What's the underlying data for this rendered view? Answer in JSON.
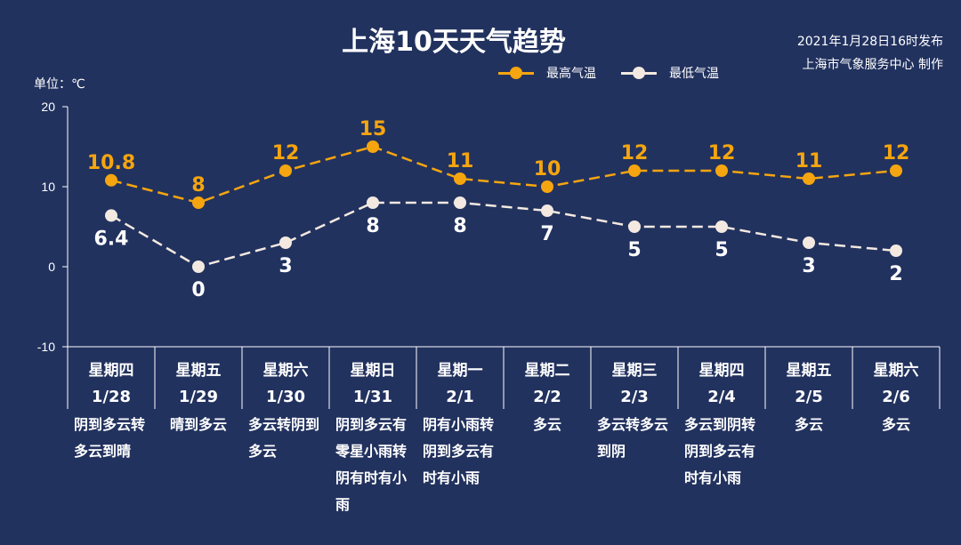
{
  "title": "上海10天天气趋势",
  "publish": {
    "time": "2021年1月28日16时发布",
    "producer": "上海市气象服务中心 制作"
  },
  "colors": {
    "background": "#22325f",
    "high": "#f5a50f",
    "low": "#f3e9e0",
    "axis": "#ffffff"
  },
  "chart_data": {
    "type": "line",
    "title": "上海10天天气趋势",
    "ylabel": "单位：℃",
    "ylim": [
      -10,
      20
    ],
    "yticks": [
      "-10",
      "0",
      "10",
      "20"
    ],
    "yticks_values": [
      -10,
      0,
      10,
      20
    ],
    "legend_position": "top-center",
    "categories": [
      {
        "weekday": "星期四",
        "date": "1/28",
        "weather": "阴到多云转多云到晴"
      },
      {
        "weekday": "星期五",
        "date": "1/29",
        "weather": "晴到多云"
      },
      {
        "weekday": "星期六",
        "date": "1/30",
        "weather": "多云转阴到多云"
      },
      {
        "weekday": "星期日",
        "date": "1/31",
        "weather": "阴到多云有零星小雨转阴有时有小雨"
      },
      {
        "weekday": "星期一",
        "date": "2/1",
        "weather": "阴有小雨转阴到多云有时有小雨"
      },
      {
        "weekday": "星期二",
        "date": "2/2",
        "weather": "多云"
      },
      {
        "weekday": "星期三",
        "date": "2/3",
        "weather": "多云转多云到阴"
      },
      {
        "weekday": "星期四",
        "date": "2/4",
        "weather": "多云到阴转阴到多云有时有小雨"
      },
      {
        "weekday": "星期五",
        "date": "2/5",
        "weather": "多云"
      },
      {
        "weekday": "星期六",
        "date": "2/6",
        "weather": "多云"
      }
    ],
    "series": [
      {
        "name": "最高气温",
        "values": [
          10.8,
          8,
          12,
          15,
          11,
          10,
          12,
          12,
          11,
          12
        ],
        "labels": [
          "10.8",
          "8",
          "12",
          "15",
          "11",
          "10",
          "12",
          "12",
          "11",
          "12"
        ]
      },
      {
        "name": "最低气温",
        "values": [
          6.4,
          0,
          3,
          8,
          8,
          7,
          5,
          5,
          3,
          2
        ],
        "labels": [
          "6.4",
          "0",
          "3",
          "8",
          "8",
          "7",
          "5",
          "5",
          "3",
          "2"
        ]
      }
    ]
  }
}
